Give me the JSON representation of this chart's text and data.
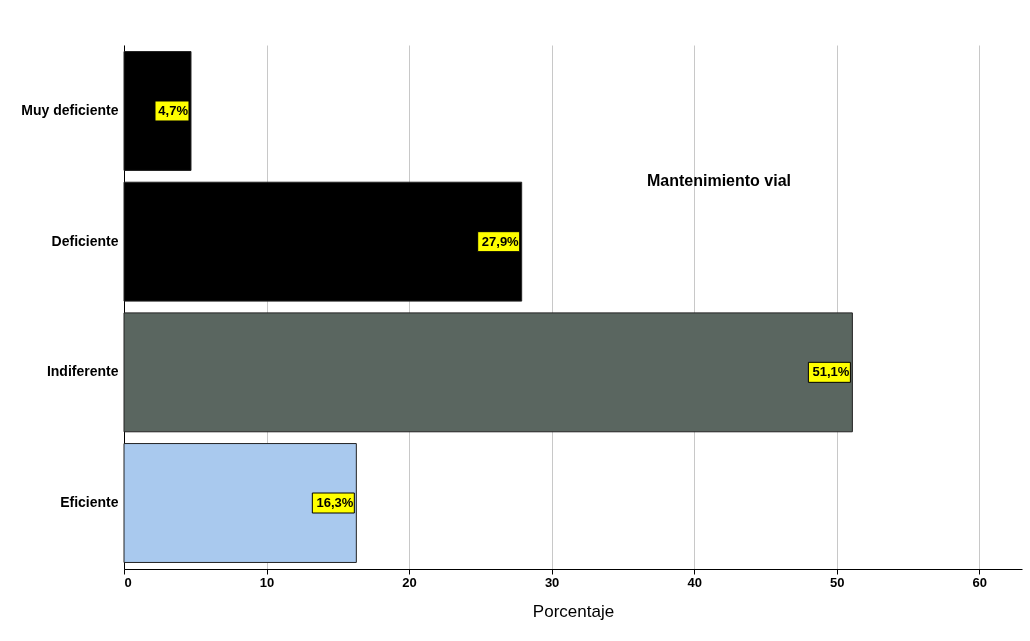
{
  "chart_data": {
    "type": "bar",
    "orientation": "horizontal",
    "title": "Mantenimiento vial",
    "xlabel": "Porcentaje",
    "categories": [
      "Muy deficiente",
      "Deficiente",
      "Indiferente",
      "Eficiente"
    ],
    "values": [
      4.7,
      27.9,
      51.1,
      16.3
    ],
    "colors": [
      "#000000",
      "#000000",
      "#5a6660",
      "#a9c9ee"
    ],
    "value_labels": [
      "4,7%",
      "27,9%",
      "51,1%",
      "16,3%"
    ],
    "xlim": [
      0,
      63
    ],
    "xticks": [
      0,
      10,
      20,
      30,
      40,
      50,
      60
    ],
    "grid": "x"
  }
}
